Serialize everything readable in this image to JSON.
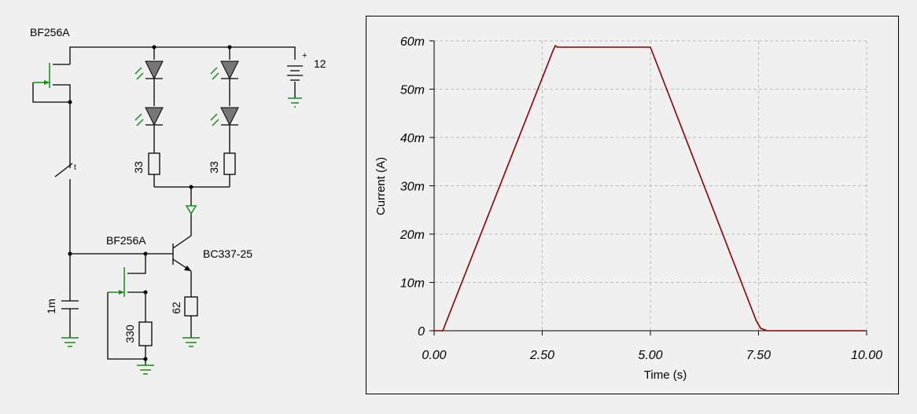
{
  "circuit": {
    "labels": {
      "jfet_top": "BF256A",
      "jfet_bottom": "BF256A",
      "battery": "12",
      "battery_polarity": "+",
      "switch": "t",
      "resistor_left": "33",
      "resistor_right": "33",
      "transistor": "BC337-25",
      "capacitor": "1m",
      "resistor_gate": "330",
      "resistor_emitter": "62"
    }
  },
  "chart_data": {
    "type": "line",
    "xlabel": "Time (s)",
    "ylabel": "Current (A)",
    "x": [
      0,
      0.2,
      2.75,
      2.8,
      2.85,
      5.0,
      7.45,
      7.55,
      7.7,
      10
    ],
    "series": [
      {
        "color": "#8b0000",
        "values": [
          0,
          0,
          0.058,
          0.059,
          0.0587,
          0.0587,
          0.002,
          0.0005,
          0,
          0
        ]
      }
    ],
    "xlim": [
      0,
      10
    ],
    "xticks": [
      {
        "value": 0,
        "label": "0.00"
      },
      {
        "value": 2.5,
        "label": "2.50"
      },
      {
        "value": 5,
        "label": "5.00"
      },
      {
        "value": 7.5,
        "label": "7.50"
      },
      {
        "value": 10,
        "label": "10.00"
      }
    ],
    "ylim": [
      0,
      0.06
    ],
    "yticks": [
      0,
      {
        "value": 0.01,
        "label": "10m"
      },
      {
        "value": 0.02,
        "label": "20m"
      },
      {
        "value": 0.03,
        "label": "30m"
      },
      {
        "value": 0.04,
        "label": "40m"
      },
      {
        "value": 0.05,
        "label": "50m"
      },
      {
        "value": 0.06,
        "label": "60m"
      }
    ],
    "grid": true
  }
}
